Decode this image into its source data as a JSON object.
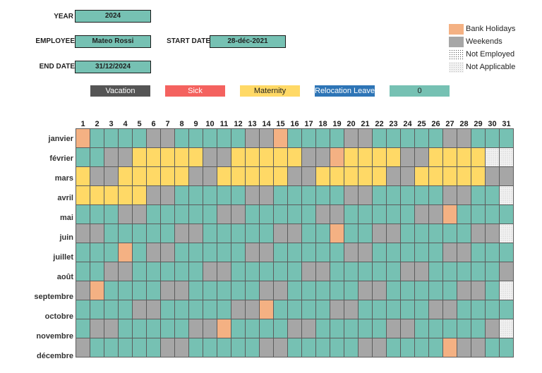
{
  "form": {
    "year_label": "YEAR",
    "year_value": "2024",
    "employee_label": "EMPLOYEE",
    "employee_value": "Mateo Rossi",
    "start_label": "START DATE",
    "start_value": "28-déc-2021",
    "end_label": "END DATE",
    "end_value": "31/12/2024"
  },
  "legend": [
    {
      "label": "Bank Holidays",
      "color": "#f4b183",
      "style": "solid"
    },
    {
      "label": "Weekends",
      "color": "#a6a6a6",
      "style": "solid"
    },
    {
      "label": "Not Employed",
      "color": "#ffffff",
      "style": "dots-dark"
    },
    {
      "label": "Not Applicable",
      "color": "#f2f2f2",
      "style": "dots-light"
    }
  ],
  "categories": [
    {
      "label": "Vacation",
      "color": "#555555",
      "text_color": "#ffffff"
    },
    {
      "label": "Sick",
      "color": "#f4625f",
      "text_color": "#ffffff"
    },
    {
      "label": "Maternity",
      "color": "#ffd966",
      "text_color": "#1f1f1f"
    },
    {
      "label": "Relocation Leave",
      "color": "#2e75b6",
      "text_color": "#ffffff"
    },
    {
      "label": "0",
      "color": "#76c1b3",
      "text_color": "#1f1f1f"
    }
  ],
  "days": [
    "1",
    "2",
    "3",
    "4",
    "5",
    "6",
    "7",
    "8",
    "9",
    "10",
    "11",
    "12",
    "13",
    "14",
    "15",
    "16",
    "17",
    "18",
    "19",
    "20",
    "21",
    "22",
    "23",
    "24",
    "25",
    "26",
    "27",
    "28",
    "29",
    "30",
    "31"
  ],
  "months": [
    {
      "name": "janvier",
      "cells": "BNNNNWWNNNNNWWBNNNNWWNNNNNWWNNN"
    },
    {
      "name": "février",
      "cells": "NNWWMMMMMWWMMMMMWWBMMMMWWMMMMXX"
    },
    {
      "name": "mars",
      "cells": "MWWMMMMMWWMMMMMWWMMMMMWWMMMMMWW"
    },
    {
      "name": "avril",
      "cells": "MMMMMWWNNNNNWWNNNNNWWNNNNNWWNNX"
    },
    {
      "name": "mai",
      "cells": "NNNWWNNNNNWWNNNNNWWNNNNNWWBNNNN"
    },
    {
      "name": "juin",
      "cells": "WWNNNNNWWNNNNNWWNNBNNWWNNNNNWWX"
    },
    {
      "name": "juillet",
      "cells": "NNNBNWWNNNNNWWNNNNNWWNNNNNWWNNN"
    },
    {
      "name": "août",
      "cells": "NNWWNNNNNWWNNNNNWWNNNNNWWNNNNNW"
    },
    {
      "name": "septembre",
      "cells": "WBNNNNWWNNNNNWWNNNNNWWNNNNNWWNX"
    },
    {
      "name": "octobre",
      "cells": "NNNNWWNNNNNWWBNNNNWWNNNNNWWNNNN"
    },
    {
      "name": "novembre",
      "cells": "NWWNNNNNWWBNNNNWWNNNNNWWNNNNNWX"
    },
    {
      "name": "décembre",
      "cells": "WNNNNNWWNNNNNWWNNNNNWWNNNNBWWNN"
    }
  ]
}
